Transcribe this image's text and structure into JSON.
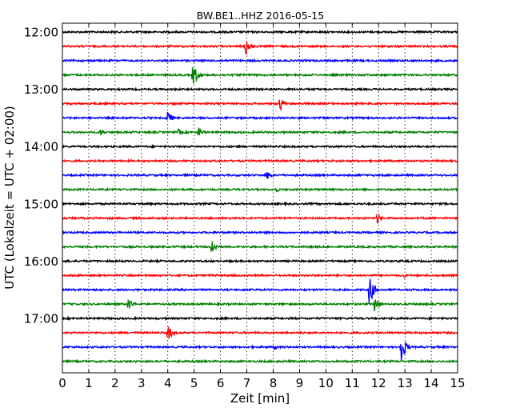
{
  "chart_data": {
    "type": "line",
    "title": "BW.BE1..HHZ 2016-05-15",
    "xlabel": "Zeit  [min]",
    "ylabel": "UTC (Lokalzeit = UTC + 02:00)",
    "xlim": [
      0,
      15
    ],
    "x_ticks": [
      "0",
      "1",
      "2",
      "3",
      "4",
      "5",
      "6",
      "7",
      "8",
      "9",
      "10",
      "11",
      "12",
      "13",
      "14",
      "15"
    ],
    "y_tick_labels": [
      "12:00",
      "13:00",
      "14:00",
      "15:00",
      "16:00",
      "17:00"
    ],
    "grid": true,
    "trace_interval_minutes": 15,
    "colors": [
      "#000000",
      "#ff0000",
      "#0000ff",
      "#007f00"
    ],
    "series": [
      {
        "start": "12:00",
        "color": "black",
        "events": []
      },
      {
        "start": "12:15",
        "color": "red",
        "events": [
          [
            6.95,
            14
          ],
          [
            7.0,
            9
          ]
        ]
      },
      {
        "start": "12:30",
        "color": "blue",
        "events": []
      },
      {
        "start": "12:45",
        "color": "green",
        "events": [
          [
            4.95,
            16
          ],
          [
            5.05,
            10
          ]
        ]
      },
      {
        "start": "13:00",
        "color": "black",
        "events": []
      },
      {
        "start": "13:15",
        "color": "red",
        "events": [
          [
            8.25,
            10
          ]
        ]
      },
      {
        "start": "13:30",
        "color": "blue",
        "events": [
          [
            4.0,
            10
          ]
        ]
      },
      {
        "start": "13:45",
        "color": "green",
        "events": [
          [
            1.45,
            5
          ],
          [
            4.4,
            5
          ],
          [
            5.15,
            8
          ]
        ]
      },
      {
        "start": "14:00",
        "color": "black",
        "events": []
      },
      {
        "start": "14:15",
        "color": "red",
        "events": []
      },
      {
        "start": "14:30",
        "color": "blue",
        "events": [
          [
            7.75,
            8
          ]
        ]
      },
      {
        "start": "14:45",
        "color": "green",
        "events": [
          [
            8.1,
            4
          ]
        ]
      },
      {
        "start": "15:00",
        "color": "black",
        "events": []
      },
      {
        "start": "15:15",
        "color": "red",
        "events": [
          [
            11.95,
            7
          ]
        ]
      },
      {
        "start": "15:30",
        "color": "blue",
        "events": []
      },
      {
        "start": "15:45",
        "color": "green",
        "events": [
          [
            5.65,
            13
          ]
        ]
      },
      {
        "start": "16:00",
        "color": "black",
        "events": []
      },
      {
        "start": "16:15",
        "color": "red",
        "events": [
          [
            12.95,
            3
          ]
        ]
      },
      {
        "start": "16:30",
        "color": "blue",
        "events": [
          [
            11.65,
            22
          ]
        ]
      },
      {
        "start": "16:45",
        "color": "green",
        "events": [
          [
            2.5,
            10
          ],
          [
            11.85,
            13
          ]
        ]
      },
      {
        "start": "17:00",
        "color": "black",
        "events": []
      },
      {
        "start": "17:15",
        "color": "red",
        "events": [
          [
            4.0,
            12
          ]
        ]
      },
      {
        "start": "17:30",
        "color": "blue",
        "events": [
          [
            8.05,
            4
          ],
          [
            12.85,
            24
          ]
        ]
      },
      {
        "start": "17:45",
        "color": "green",
        "events": []
      }
    ]
  }
}
